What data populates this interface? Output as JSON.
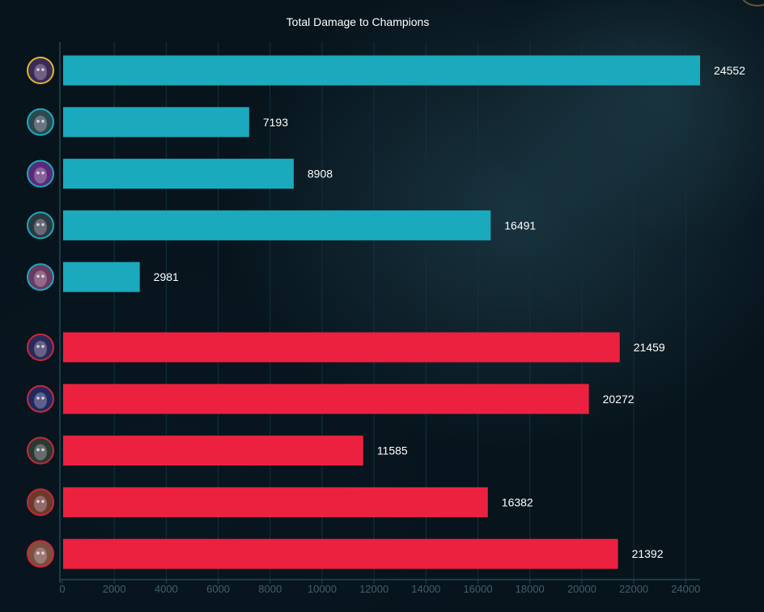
{
  "chart_data": {
    "type": "bar",
    "orientation": "horizontal",
    "title": "Total Damage to Champions",
    "xlim": [
      0,
      24552
    ],
    "xticks": [
      0,
      2000,
      4000,
      6000,
      8000,
      10000,
      12000,
      14000,
      16000,
      18000,
      20000,
      22000,
      24000
    ],
    "grid": true,
    "series": [
      {
        "team": "blue",
        "color": "#1aa9bd",
        "values": [
          24552,
          7193,
          8908,
          16491,
          2981
        ],
        "avatar_icons": [
          "champion-portrait-icon",
          "champion-portrait-icon",
          "champion-portrait-icon",
          "champion-portrait-icon",
          "champion-portrait-icon"
        ]
      },
      {
        "team": "red",
        "color": "#ec2140",
        "values": [
          21459,
          20272,
          11585,
          16382,
          21392
        ],
        "avatar_icons": [
          "champion-portrait-icon",
          "champion-portrait-icon",
          "champion-portrait-icon",
          "champion-portrait-icon",
          "champion-portrait-icon"
        ]
      }
    ]
  },
  "colors": {
    "background": "#07141c",
    "grid": "#123240",
    "tick_text": "#3f5f6b",
    "blue_border": "#1aa9bd",
    "red_border": "#c8283c",
    "highlight_border": "#e4b62a"
  },
  "highlighted_player_index": 0
}
